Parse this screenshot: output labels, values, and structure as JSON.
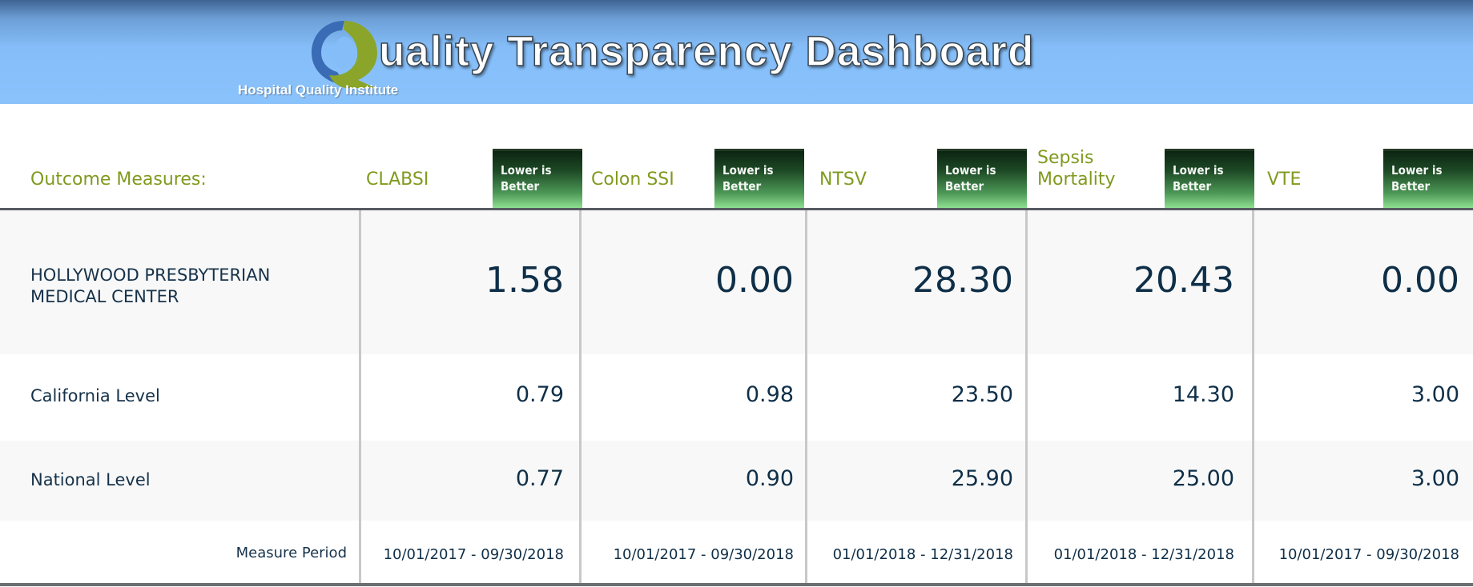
{
  "header": {
    "title": "uality Transparency Dashboard",
    "organization": "Hospital Quality Institute"
  },
  "columns_header_label": "Outcome Measures:",
  "measures": [
    {
      "name": "CLABSI",
      "badge": [
        "Lower is",
        "Better"
      ]
    },
    {
      "name": "Colon SSI",
      "badge": [
        "Lower is",
        "Better"
      ]
    },
    {
      "name": "NTSV",
      "badge": [
        "Lower is",
        "Better"
      ]
    },
    {
      "name": "Sepsis Mortality",
      "badge": [
        "Lower is",
        "Better"
      ]
    },
    {
      "name": "VTE",
      "badge": [
        "Lower is",
        "Better"
      ]
    }
  ],
  "rows": [
    {
      "label": "HOLLYWOOD PRESBYTERIAN MEDICAL CENTER",
      "values": [
        "1.58",
        "0.00",
        "28.30",
        "20.43",
        "0.00"
      ]
    },
    {
      "label": "California Level",
      "values": [
        "0.79",
        "0.98",
        "23.50",
        "14.30",
        "3.00"
      ]
    },
    {
      "label": "National Level",
      "values": [
        "0.77",
        "0.90",
        "25.90",
        "25.00",
        "3.00"
      ]
    }
  ],
  "measure_period": {
    "label": "Measure Period",
    "values": [
      "10/01/2017 - 09/30/2018",
      "10/01/2017 - 09/30/2018",
      "01/01/2018 - 12/31/2018",
      "01/01/2018 - 12/31/2018",
      "10/01/2017 - 09/30/2018"
    ]
  },
  "colors": {
    "header_blue": "#8ac3fc",
    "measure_label": "#7f9a1e",
    "value_text": "#0f2f48",
    "badge_green": "#4f9a58"
  },
  "icons": {
    "logo": "hqi-q-logo-icon",
    "badge": "lower-is-better-badge"
  }
}
